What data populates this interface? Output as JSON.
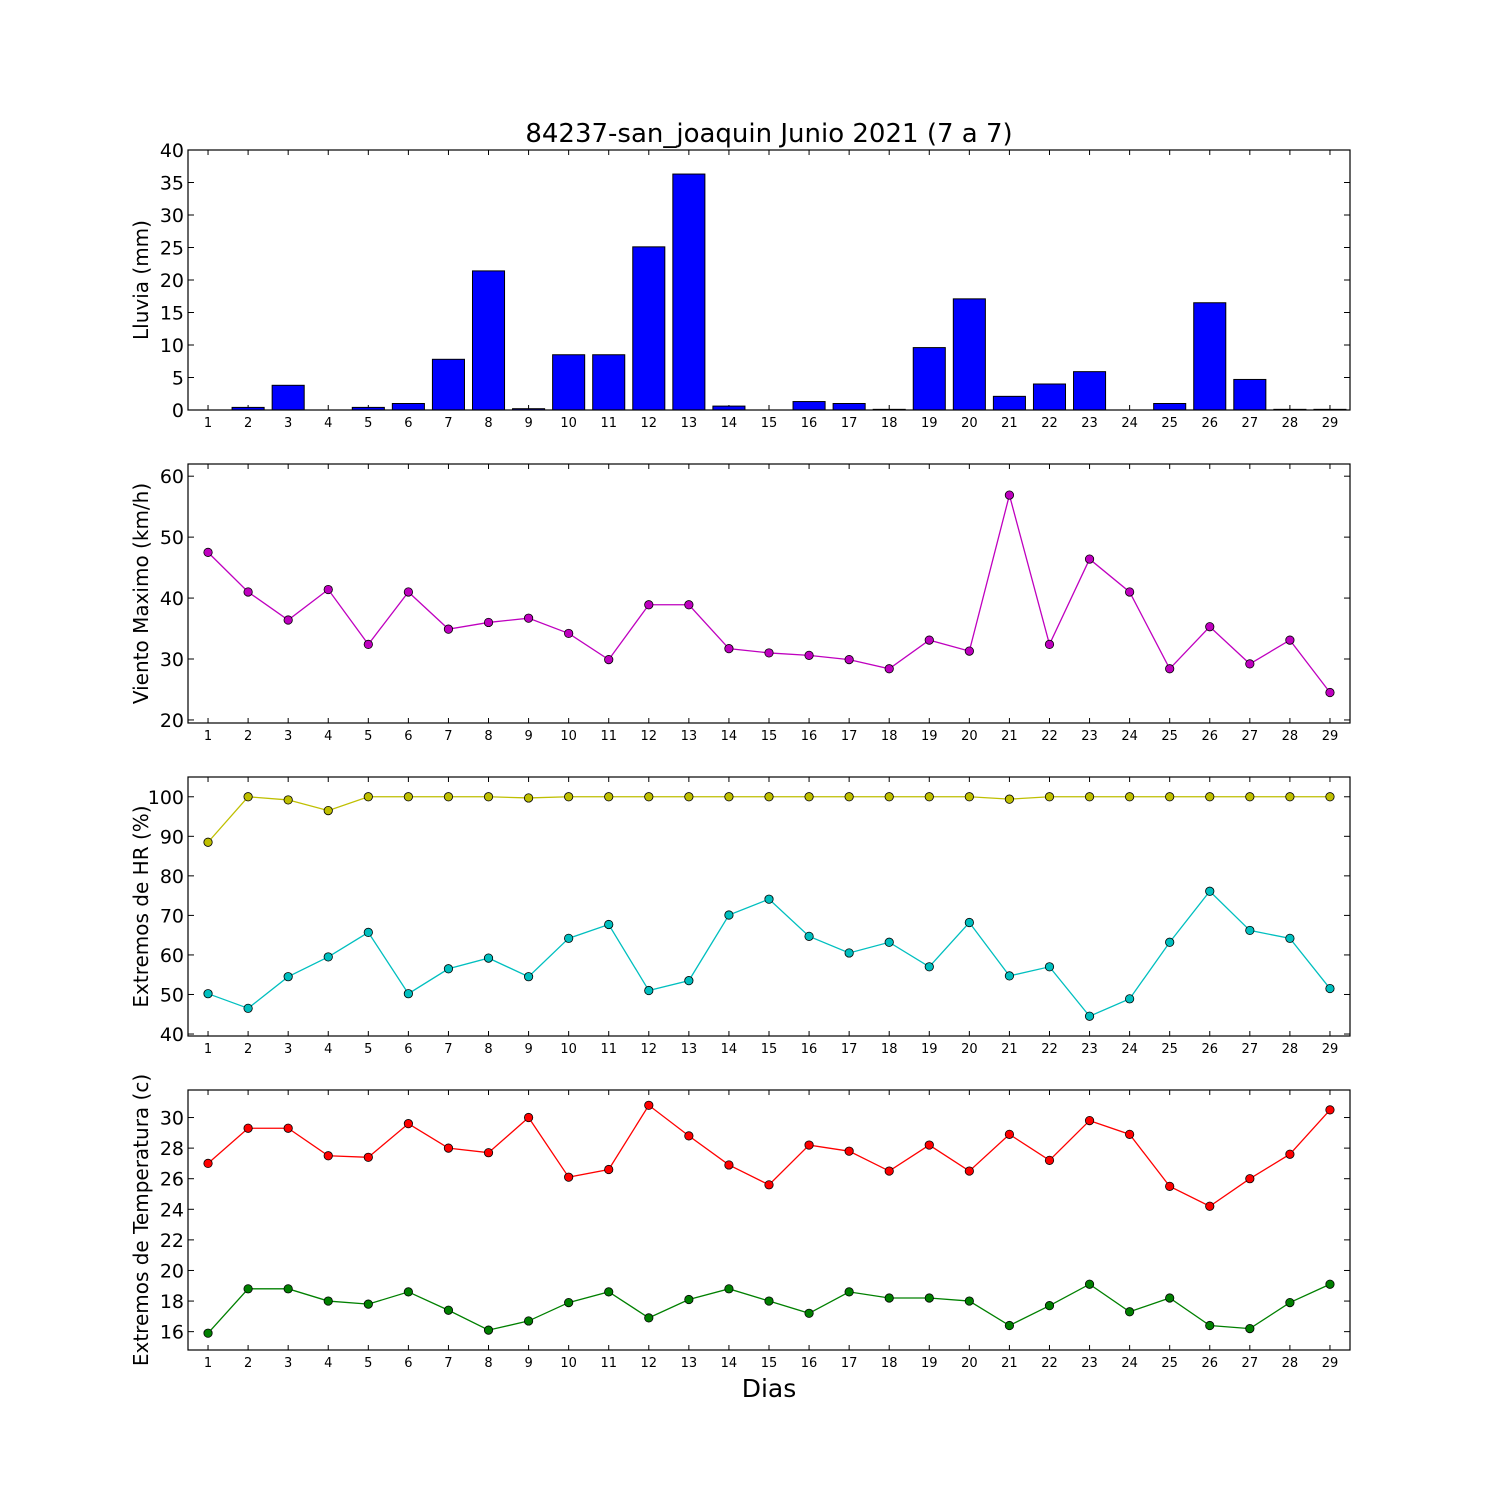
{
  "figure": {
    "title": "84237-san_joaquin Junio 2021  (7 a 7)",
    "xlabel": "Dias"
  },
  "chart_data": [
    {
      "type": "bar",
      "ylabel": "Lluvia (mm)",
      "ylim": [
        0,
        40
      ],
      "yticks": [
        0,
        5,
        10,
        15,
        20,
        25,
        30,
        35,
        40
      ],
      "x": [
        1,
        2,
        3,
        4,
        5,
        6,
        7,
        8,
        9,
        10,
        11,
        12,
        13,
        14,
        15,
        16,
        17,
        18,
        19,
        20,
        21,
        22,
        23,
        24,
        25,
        26,
        27,
        28,
        29
      ],
      "xlim": [
        0.5,
        29.5
      ],
      "series": [
        {
          "color": "#0000ff",
          "values": [
            0,
            0.4,
            3.8,
            0,
            0.4,
            1.0,
            7.8,
            21.4,
            0.2,
            8.5,
            8.5,
            25.1,
            36.3,
            0.6,
            0,
            1.3,
            1.0,
            0.1,
            9.6,
            17.1,
            2.1,
            4.0,
            5.9,
            0,
            1.0,
            16.5,
            4.7,
            0.1,
            0.1
          ]
        }
      ]
    },
    {
      "type": "line",
      "ylabel": "Viento Maximo (km/h)",
      "ylim": [
        19.5,
        62
      ],
      "yticks": [
        20,
        30,
        40,
        50,
        60
      ],
      "x": [
        1,
        2,
        3,
        4,
        5,
        6,
        7,
        8,
        9,
        10,
        11,
        12,
        13,
        14,
        15,
        16,
        17,
        18,
        19,
        20,
        21,
        22,
        23,
        24,
        25,
        26,
        27,
        28,
        29
      ],
      "xlim": [
        0.5,
        29.5
      ],
      "series": [
        {
          "color": "#bf00bf",
          "values": [
            47.5,
            41.0,
            36.4,
            41.4,
            32.4,
            41.0,
            34.9,
            36.0,
            36.7,
            34.2,
            29.9,
            38.9,
            38.9,
            31.7,
            31.0,
            30.6,
            29.9,
            28.4,
            33.1,
            31.3,
            56.9,
            32.4,
            46.4,
            41.0,
            28.4,
            35.3,
            29.2,
            33.1,
            24.5
          ]
        }
      ]
    },
    {
      "type": "line",
      "ylabel": "Extremos de HR (%)",
      "ylim": [
        39.5,
        105
      ],
      "yticks": [
        40,
        50,
        60,
        70,
        80,
        90,
        100
      ],
      "x": [
        1,
        2,
        3,
        4,
        5,
        6,
        7,
        8,
        9,
        10,
        11,
        12,
        13,
        14,
        15,
        16,
        17,
        18,
        19,
        20,
        21,
        22,
        23,
        24,
        25,
        26,
        27,
        28,
        29
      ],
      "xlim": [
        0.5,
        29.5
      ],
      "series": [
        {
          "color": "#bfbf00",
          "values": [
            88.5,
            100,
            99.2,
            96.5,
            100,
            100,
            100,
            100,
            99.7,
            100,
            100,
            100,
            100,
            100,
            100,
            100,
            100,
            100,
            100,
            100,
            99.4,
            100,
            100,
            100,
            100,
            100,
            100,
            100,
            100
          ]
        },
        {
          "color": "#00bfbf",
          "values": [
            50.2,
            46.5,
            54.5,
            59.5,
            65.7,
            50.2,
            56.5,
            59.2,
            54.5,
            64.2,
            67.7,
            51.0,
            53.5,
            70.1,
            74.1,
            64.7,
            60.5,
            63.2,
            57.0,
            68.2,
            54.7,
            57.0,
            44.5,
            48.9,
            63.2,
            76.1,
            66.2,
            64.2,
            51.5
          ]
        }
      ]
    },
    {
      "type": "line",
      "ylabel": "Extremos de Temperatura (c)",
      "ylim": [
        14.8,
        31.8
      ],
      "yticks": [
        16,
        18,
        20,
        22,
        24,
        26,
        28,
        30
      ],
      "x": [
        1,
        2,
        3,
        4,
        5,
        6,
        7,
        8,
        9,
        10,
        11,
        12,
        13,
        14,
        15,
        16,
        17,
        18,
        19,
        20,
        21,
        22,
        23,
        24,
        25,
        26,
        27,
        28,
        29
      ],
      "xlim": [
        0.5,
        29.5
      ],
      "series": [
        {
          "color": "#ff0000",
          "values": [
            27.0,
            29.3,
            29.3,
            27.5,
            27.4,
            29.6,
            28.0,
            27.7,
            30.0,
            26.1,
            26.6,
            30.8,
            28.8,
            26.9,
            25.6,
            28.2,
            27.8,
            26.5,
            28.2,
            26.5,
            28.9,
            27.2,
            29.8,
            28.9,
            25.5,
            24.2,
            26.0,
            27.6,
            30.5
          ]
        },
        {
          "color": "#008000",
          "values": [
            15.9,
            18.8,
            18.8,
            18.0,
            17.8,
            18.6,
            17.4,
            16.1,
            16.7,
            17.9,
            18.6,
            16.9,
            18.1,
            18.8,
            18.0,
            17.2,
            18.6,
            18.2,
            18.2,
            18.0,
            16.4,
            17.7,
            19.1,
            17.3,
            18.2,
            16.4,
            16.2,
            17.9,
            19.1
          ]
        }
      ]
    }
  ]
}
